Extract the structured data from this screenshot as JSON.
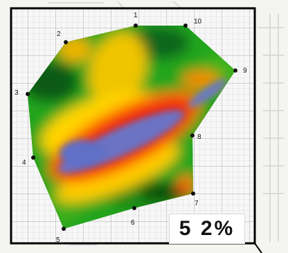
{
  "percent_label": "5 2%",
  "points": [
    {
      "label": "1"
    },
    {
      "label": "2"
    },
    {
      "label": "3"
    },
    {
      "label": "4"
    },
    {
      "label": "5"
    },
    {
      "label": "6"
    },
    {
      "label": "7"
    },
    {
      "label": "8"
    },
    {
      "label": "9"
    },
    {
      "label": "10"
    }
  ],
  "colors": {
    "frame": "#000000",
    "grid": "#c8c8c8",
    "heat_low_dark": "#0e4d12",
    "heat_low": "#14a11a",
    "heat_mid_green": "#7fd11d",
    "heat_yellow": "#f2e100",
    "heat_orange": "#ff8c00",
    "heat_high": "#f01414",
    "heat_peak": "#6a78c8"
  }
}
